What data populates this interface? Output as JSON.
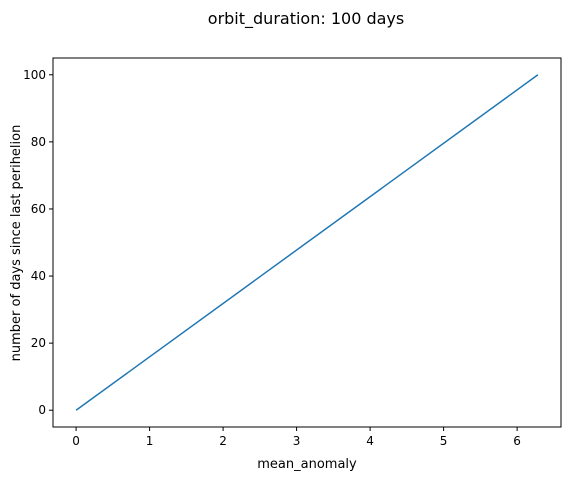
{
  "chart_data": {
    "type": "line",
    "title": "orbit_duration: 100 days",
    "xlabel": "mean_anomaly",
    "ylabel": "number of days since last perihelion",
    "xlim": [
      -0.314,
      6.597
    ],
    "ylim": [
      -5,
      105
    ],
    "xticks": [
      0,
      1,
      2,
      3,
      4,
      5,
      6
    ],
    "yticks": [
      0,
      20,
      40,
      60,
      80,
      100
    ],
    "grid": false,
    "legend": "none",
    "series": [
      {
        "color": "#1f77b4",
        "x": [
          0,
          6.283
        ],
        "y": [
          0,
          100
        ]
      }
    ]
  }
}
